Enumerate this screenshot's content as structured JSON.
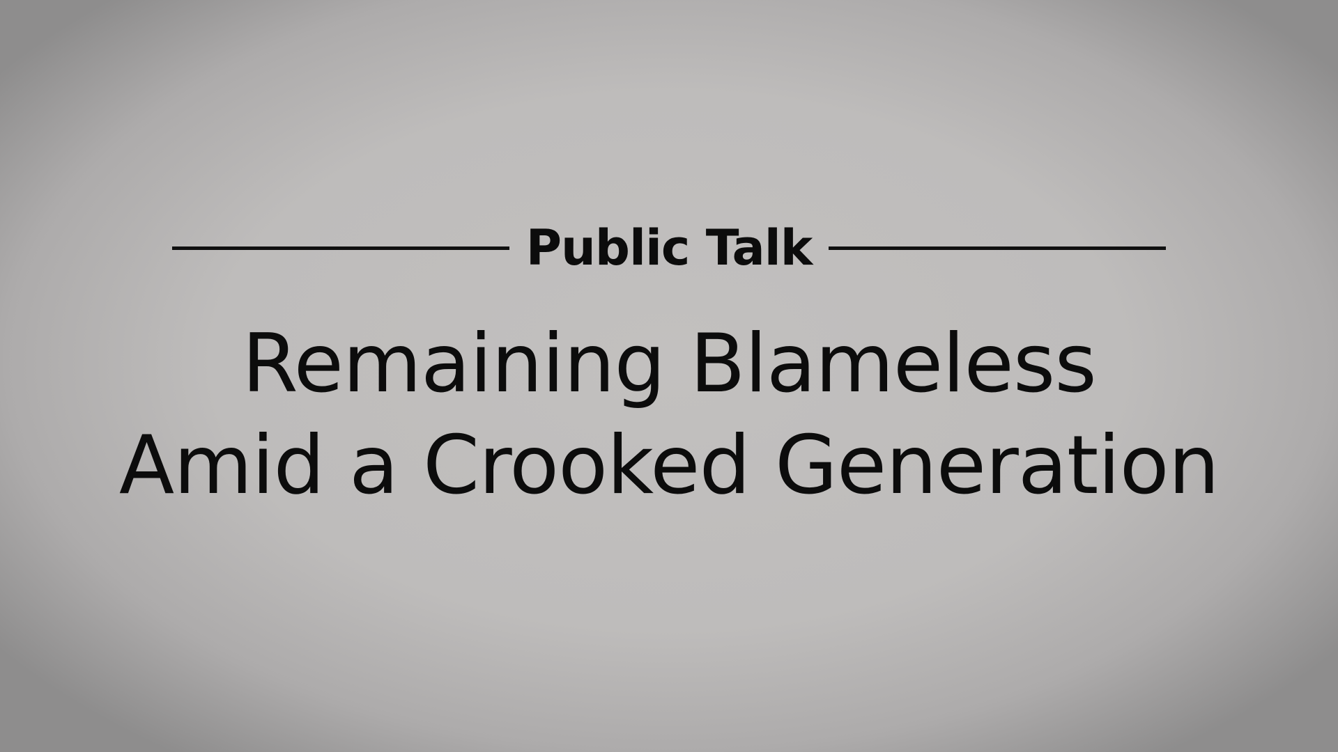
{
  "slide": {
    "eyebrow": "Public Talk",
    "title_lines": [
      "Remaining Blameless",
      "Amid a Crooked Generation"
    ]
  },
  "colors": {
    "background_center": "#c2c0bf",
    "background_edge": "#8e8d8d",
    "text": "#0c0c0c",
    "rule": "#101010"
  }
}
